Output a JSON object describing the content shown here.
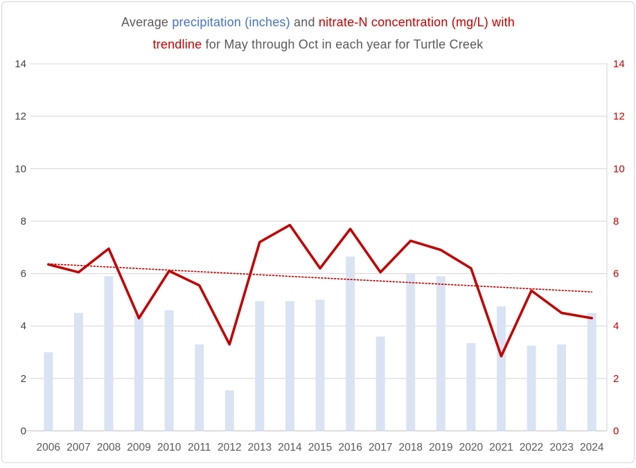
{
  "title": {
    "full_text": "Average precipitation (inches) and nitrate-N concentration (mg/L) with trendline for May through Oct in each year for Turtle Creek",
    "line1": [
      {
        "text": "Average ",
        "color": "gray"
      },
      {
        "text": "precipitation (inches)",
        "color": "blue"
      },
      {
        "text": " and ",
        "color": "gray"
      },
      {
        "text": "nitrate-N concentration (mg/L) with",
        "color": "red"
      }
    ],
    "line2": [
      {
        "text": "trendline",
        "color": "red"
      },
      {
        "text": " for May through Oct in each year for Turtle Creek",
        "color": "gray"
      }
    ]
  },
  "colors": {
    "background": "#ffffff",
    "border": "#d6d6d6",
    "title_gray": "#595959",
    "title_blue": "#4472c4",
    "title_red": "#c00000",
    "bar_fill": "#dae3f3",
    "line": "#c00000",
    "trendline": "#c00000",
    "gridline": "#d9d9d9",
    "axis_line": "#bfbfbf",
    "left_axis_text": "#404040",
    "right_axis_text": "#c00000",
    "x_axis_text": "#595959"
  },
  "chart_data": {
    "type": "combo-bar-line",
    "title": "Average precipitation (inches) and nitrate-N concentration (mg/L) with trendline for May through Oct in each year for Turtle Creek",
    "grid": true,
    "legend": false,
    "categories": [
      "2006",
      "2007",
      "2008",
      "2009",
      "2010",
      "2011",
      "2012",
      "2013",
      "2014",
      "2015",
      "2016",
      "2017",
      "2018",
      "2019",
      "2020",
      "2021",
      "2022",
      "2023",
      "2024"
    ],
    "left_axis": {
      "label": "precipitation (inches)",
      "min": 0,
      "max": 14,
      "step": 2,
      "ticks": [
        "0",
        "2",
        "4",
        "6",
        "8",
        "10",
        "12",
        "14"
      ]
    },
    "right_axis": {
      "label": "nitrate-N concentration (mg/L)",
      "min": 0,
      "max": 14,
      "step": 2,
      "ticks": [
        "0",
        "2",
        "4",
        "6",
        "8",
        "10",
        "12",
        "14"
      ]
    },
    "series": [
      {
        "name": "Average precipitation (inches)",
        "type": "bar",
        "axis": "left",
        "values": [
          3.0,
          4.5,
          5.9,
          4.4,
          4.6,
          3.3,
          1.55,
          4.95,
          4.95,
          5.0,
          6.65,
          3.6,
          6.0,
          5.9,
          3.35,
          4.75,
          3.25,
          3.3,
          4.5
        ]
      },
      {
        "name": "nitrate-N concentration (mg/L)",
        "type": "line",
        "axis": "right",
        "values": [
          6.35,
          6.05,
          6.95,
          4.3,
          6.1,
          5.55,
          3.3,
          7.2,
          7.85,
          6.2,
          7.7,
          6.05,
          7.25,
          6.9,
          6.2,
          2.85,
          5.35,
          4.5,
          4.3
        ]
      },
      {
        "name": "trendline",
        "type": "trendline",
        "style": "dotted",
        "start_value": 6.37,
        "end_value": 5.3
      }
    ]
  }
}
